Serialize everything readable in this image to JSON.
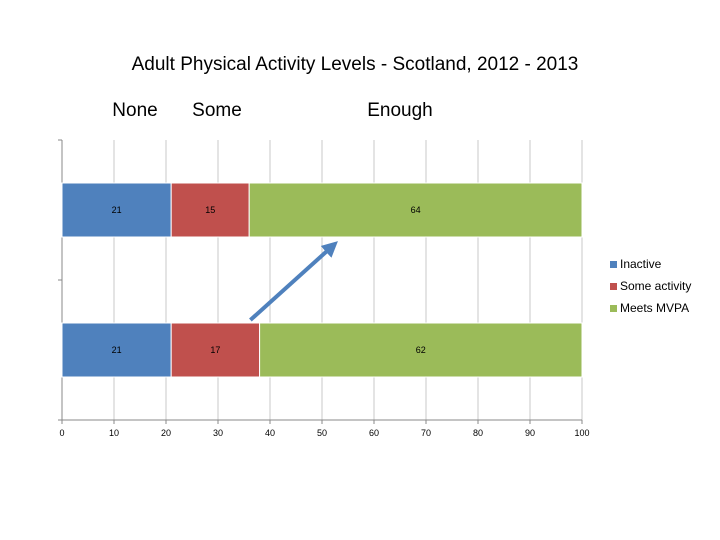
{
  "chart_data": {
    "type": "bar",
    "orientation": "horizontal",
    "stacked": true,
    "title": "Adult Physical Activity Levels - Scotland, 2012 - 2013",
    "column_headers": [
      "None",
      "Some",
      "Enough"
    ],
    "categories": [
      "",
      ""
    ],
    "series": [
      {
        "name": "Inactive",
        "color": "#4f81bd",
        "values": [
          21,
          21
        ]
      },
      {
        "name": "Some activity",
        "color": "#c0504d",
        "values": [
          15,
          17
        ]
      },
      {
        "name": "Meets MVPA",
        "color": "#9bbb59",
        "values": [
          64,
          62
        ]
      }
    ],
    "xlim": [
      0,
      100
    ],
    "xticks": [
      "0",
      "10",
      "20",
      "30",
      "40",
      "50",
      "60",
      "70",
      "80",
      "90",
      "100"
    ],
    "grid": true,
    "legend": "right",
    "annotation": {
      "type": "arrow",
      "color": "#4f81bd",
      "from_value": 42,
      "to_value": 53
    }
  }
}
